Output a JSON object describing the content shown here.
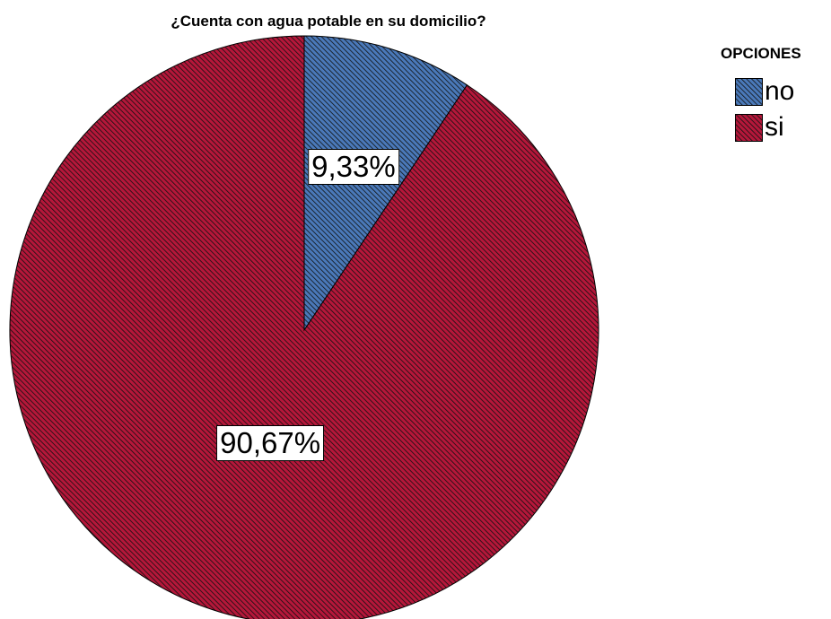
{
  "chart_data": {
    "type": "pie",
    "title": "¿Cuenta con agua potable en su domicilio?",
    "legend_title": "OPCIONES",
    "legend_position": "top-right",
    "categories": [
      "no",
      "si"
    ],
    "values": [
      9.33,
      90.67
    ],
    "data_labels": [
      "9,33%",
      "90,67%"
    ],
    "colors": [
      "#4a79b9",
      "#b5173a"
    ],
    "start_angle_deg": 0,
    "direction": "clockwise"
  }
}
